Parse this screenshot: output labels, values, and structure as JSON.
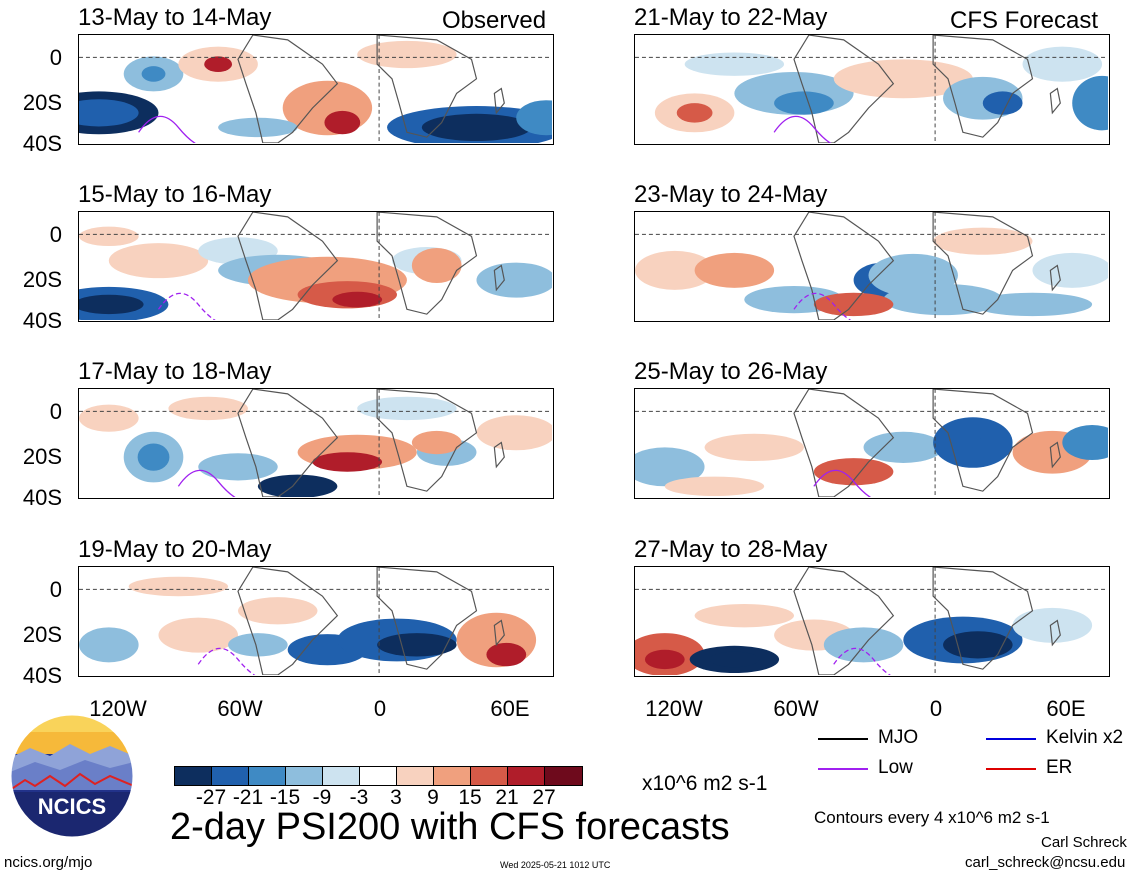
{
  "panels": [
    {
      "date_label": "13-May to 14-May",
      "tag": "Observed"
    },
    {
      "date_label": "15-May to 16-May",
      "tag": ""
    },
    {
      "date_label": "17-May to 18-May",
      "tag": ""
    },
    {
      "date_label": "19-May to 20-May",
      "tag": ""
    },
    {
      "date_label": "21-May to 22-May",
      "tag": "CFS Forecast"
    },
    {
      "date_label": "23-May to 24-May",
      "tag": ""
    },
    {
      "date_label": "25-May to 26-May",
      "tag": ""
    },
    {
      "date_label": "27-May to 28-May",
      "tag": ""
    }
  ],
  "lat_labels": [
    "0",
    "20S",
    "40S"
  ],
  "lon_labels": [
    "120W",
    "60W",
    "0",
    "60E"
  ],
  "colorbar": {
    "colors": [
      "#0d2e5e",
      "#2060ad",
      "#3f8ac4",
      "#8ebedd",
      "#cde3f0",
      "#ffffff",
      "#f8d2bf",
      "#f0a07e",
      "#d65a48",
      "#b01d2a",
      "#6e0a1c"
    ],
    "ticks": [
      "-27",
      "-21",
      "-15",
      "-9",
      "-3",
      "3",
      "9",
      "15",
      "21",
      "27"
    ],
    "units": "x10^6 m2 s-1"
  },
  "title": "2-day PSI200 with CFS forecasts",
  "legend": [
    {
      "label": "MJO",
      "color": "#000000"
    },
    {
      "label": "Kelvin x2",
      "color": "#0000dd"
    },
    {
      "label": "Low",
      "color": "#a020f0"
    },
    {
      "label": "ER",
      "color": "#dd0000"
    }
  ],
  "contour_note": "Contours every 4 x10^6 m2 s-1",
  "author": "Carl Schreck",
  "email": "carl_schreck@ncsu.edu",
  "url": "ncics.org/mjo",
  "timestamp": "Wed 2025-05-21 1012 UTC",
  "logo_text": "NCICS"
}
